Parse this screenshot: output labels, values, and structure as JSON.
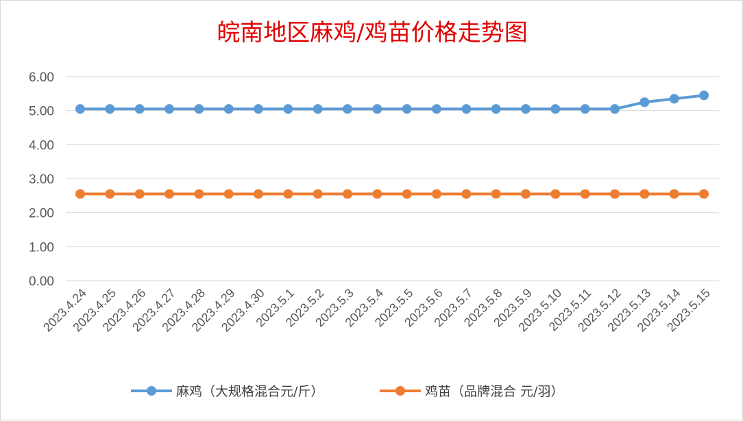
{
  "chart_data": {
    "type": "line",
    "title": "皖南地区麻鸡/鸡苗价格走势图",
    "categories": [
      "2023.4.24",
      "2023.4.25",
      "2023.4.26",
      "2023.4.27",
      "2023.4.28",
      "2023.4.29",
      "2023.4.30",
      "2023.5.1",
      "2023.5.2",
      "2023.5.3",
      "2023.5.4",
      "2023.5.5",
      "2023.5.6",
      "2023.5.7",
      "2023.5.8",
      "2023.5.9",
      "2023.5.10",
      "2023.5.11",
      "2023.5.12",
      "2023.5.13",
      "2023.5.14",
      "2023.5.15"
    ],
    "series": [
      {
        "name": "麻鸡（大规格混合元/斤）",
        "color": "#5b9bd5",
        "values": [
          5.05,
          5.05,
          5.05,
          5.05,
          5.05,
          5.05,
          5.05,
          5.05,
          5.05,
          5.05,
          5.05,
          5.05,
          5.05,
          5.05,
          5.05,
          5.05,
          5.05,
          5.05,
          5.05,
          5.25,
          5.35,
          5.45
        ]
      },
      {
        "name": "鸡苗（品牌混合 元/羽）",
        "color": "#ed7d31",
        "values": [
          2.55,
          2.55,
          2.55,
          2.55,
          2.55,
          2.55,
          2.55,
          2.55,
          2.55,
          2.55,
          2.55,
          2.55,
          2.55,
          2.55,
          2.55,
          2.55,
          2.55,
          2.55,
          2.55,
          2.55,
          2.55,
          2.55
        ]
      }
    ],
    "ylim": [
      0,
      6
    ],
    "yticks": [
      "0.00",
      "1.00",
      "2.00",
      "3.00",
      "4.00",
      "5.00",
      "6.00"
    ],
    "grid": true,
    "legend": "bottom"
  }
}
